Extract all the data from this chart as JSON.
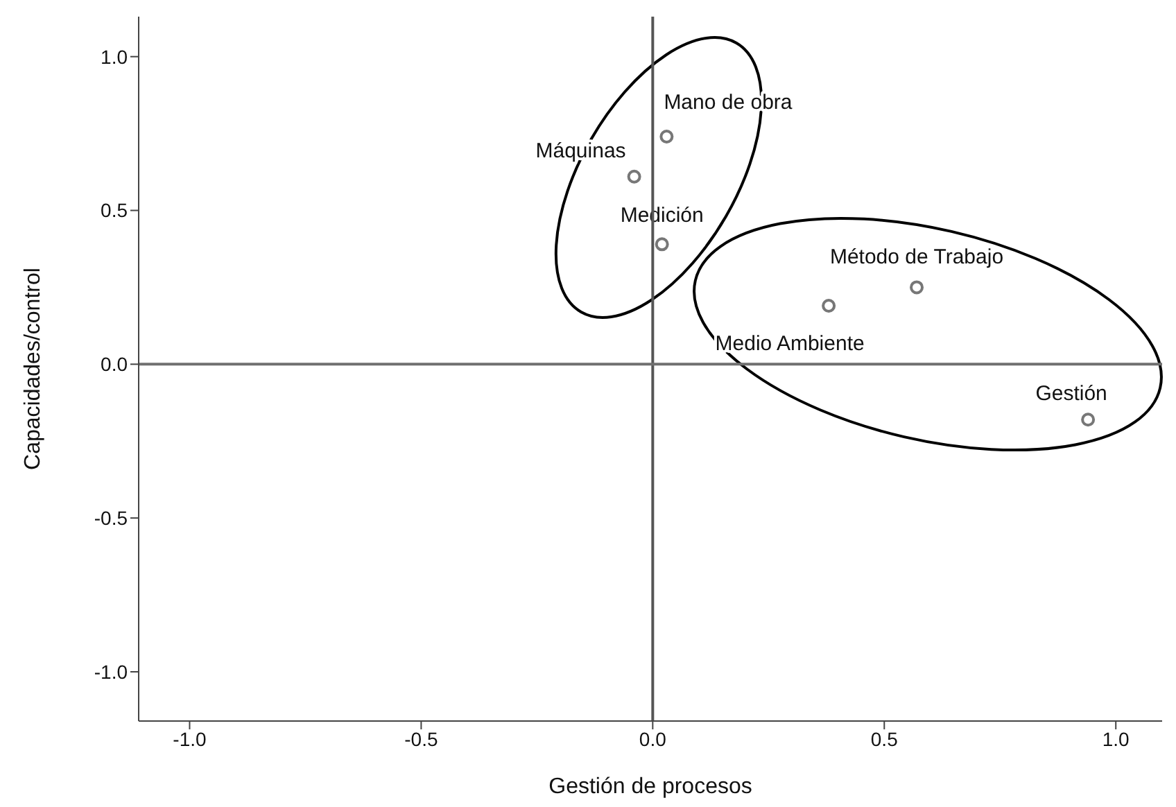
{
  "chart_data": {
    "type": "scatter",
    "xlabel": "Gestión de procesos",
    "ylabel": "Capacidades/control",
    "x": [
      0.03,
      -0.04,
      0.02,
      0.57,
      0.38,
      0.94
    ],
    "series": [
      {
        "color": "#777777",
        "values": [
          0.74,
          0.61,
          0.39,
          0.25,
          0.19,
          -0.18
        ]
      }
    ],
    "annotations": [
      {
        "text": "Mano de obra",
        "x": 0.03,
        "y": 0.74
      },
      {
        "text": "Máquinas",
        "x": -0.04,
        "y": 0.61
      },
      {
        "text": "Medición",
        "x": 0.02,
        "y": 0.39
      },
      {
        "text": "Método de Trabajo",
        "x": 0.57,
        "y": 0.25
      },
      {
        "text": "Medio Ambiente",
        "x": 0.38,
        "y": 0.19
      },
      {
        "text": "Gestión",
        "x": 0.94,
        "y": -0.18
      }
    ],
    "xlim": [
      -1.11,
      1.1
    ],
    "xticks": [
      {
        "value": -1,
        "label": "-1.0"
      },
      {
        "value": -0.5,
        "label": "-0.5"
      },
      {
        "value": 0,
        "label": "0.0"
      },
      {
        "value": 0.5,
        "label": "0.5"
      },
      {
        "value": 1,
        "label": "1.0"
      }
    ],
    "ylim": [
      -1.16,
      1.13
    ],
    "yticks": [
      {
        "value": -1,
        "label": "-1.0"
      },
      {
        "value": -0.5,
        "label": "-0.5"
      },
      {
        "value": 0,
        "label": "0.0"
      },
      {
        "value": 0.5,
        "label": "0.5"
      },
      {
        "value": 1,
        "label": "1.0"
      }
    ],
    "ref_lines": [
      {
        "axis": "x",
        "value": 0,
        "color": "#555555"
      },
      {
        "axis": "y",
        "value": 0,
        "color": "#707070"
      }
    ],
    "marker": "circle",
    "grid": false,
    "legend": false
  }
}
